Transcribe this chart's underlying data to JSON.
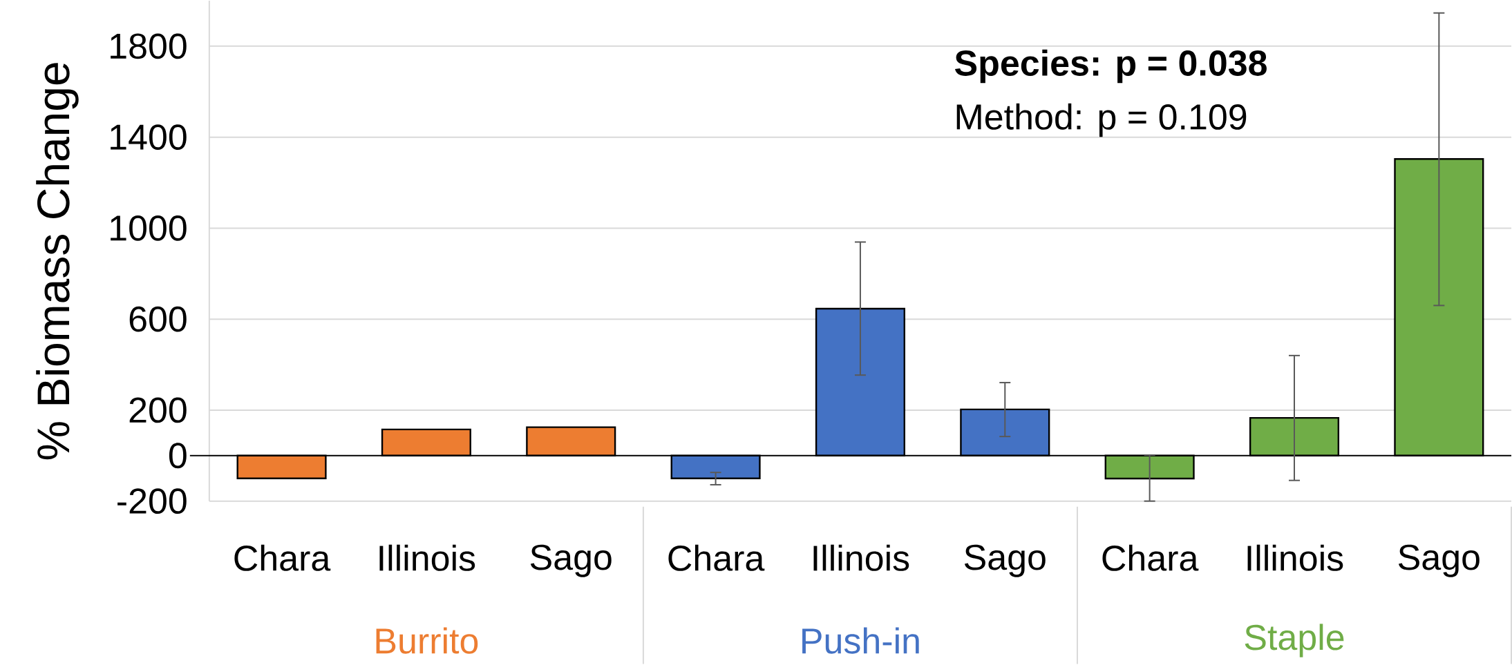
{
  "chart_data": {
    "type": "bar",
    "ylabel": "% Biomass Change",
    "categories": [
      "Chara",
      "Illinois",
      "Sago",
      "Chara",
      "Illinois",
      "Sago",
      "Chara",
      "Illinois",
      "Sago"
    ],
    "series": [
      {
        "name": "Burrito",
        "color": "#ed7d31",
        "values": [
          -100,
          115,
          125,
          null,
          null,
          null,
          null,
          null,
          null
        ],
        "errors": [
          null,
          null,
          null,
          null,
          null,
          null,
          null,
          null,
          null
        ]
      },
      {
        "name": "Push-in",
        "color": "#4472c4",
        "values": [
          null,
          null,
          null,
          -100,
          646,
          203,
          null,
          null,
          null
        ],
        "errors": [
          null,
          null,
          null,
          [
            -128,
            -74
          ],
          [
            354,
            939
          ],
          [
            84,
            321
          ],
          null,
          null,
          null
        ]
      },
      {
        "name": "Staple",
        "color": "#70ad47",
        "values": [
          null,
          null,
          null,
          null,
          null,
          null,
          -101,
          166,
          1304
        ],
        "errors": [
          null,
          null,
          null,
          null,
          null,
          null,
          [
            -200,
            2
          ],
          [
            -109,
            440
          ],
          [
            660,
            1946
          ]
        ]
      }
    ],
    "ylim": [
      -200,
      2000
    ],
    "yticks": [
      -200,
      0,
      200,
      600,
      1000,
      1400,
      1800
    ],
    "grid": "y",
    "ref_lines": [
      {
        "axis": "y",
        "value": 0,
        "color": "#000000"
      }
    ],
    "annotations": [
      "**Species: p = 0.038**",
      "Method: p = 0.109"
    ]
  }
}
